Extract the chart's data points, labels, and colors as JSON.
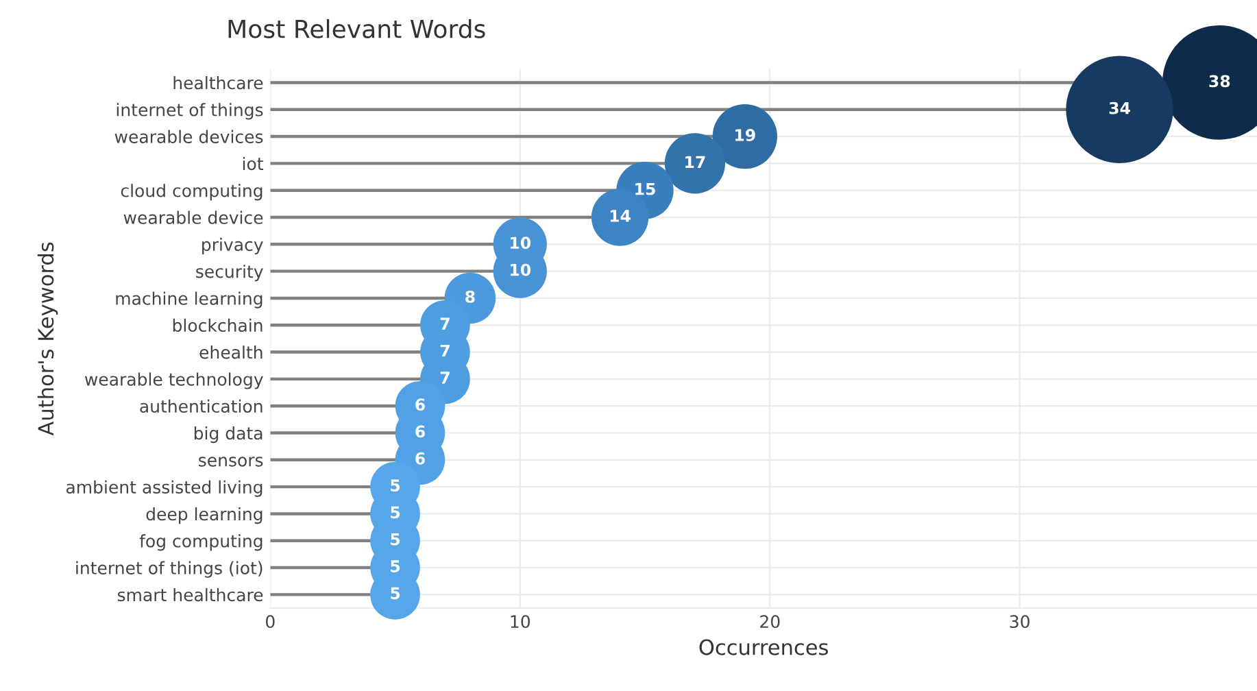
{
  "chart_data": {
    "type": "lollipop",
    "title": "Most Relevant Words",
    "xlabel": "Occurrences",
    "ylabel": "Author's Keywords",
    "categories": [
      "healthcare",
      "internet of things",
      "wearable devices",
      "iot",
      "cloud computing",
      "wearable device",
      "privacy",
      "security",
      "machine learning",
      "blockchain",
      "ehealth",
      "wearable technology",
      "authentication",
      "big data",
      "sensors",
      "ambient assisted living",
      "deep learning",
      "fog computing",
      "internet of things (iot)",
      "smart healthcare"
    ],
    "values": [
      38,
      34,
      19,
      17,
      15,
      14,
      10,
      10,
      8,
      7,
      7,
      7,
      6,
      6,
      6,
      5,
      5,
      5,
      5,
      5
    ],
    "colors": [
      "#0f2b4c",
      "#173b60",
      "#2e6ca3",
      "#3273ab",
      "#3a7fbd",
      "#3c84c4",
      "#4793d6",
      "#4793d6",
      "#4c99dd",
      "#4f9de1",
      "#4f9de1",
      "#4f9de1",
      "#52a1e6",
      "#52a1e6",
      "#52a1e6",
      "#56a6ea",
      "#56a6ea",
      "#56a6ea",
      "#56a6ea",
      "#56a6ea"
    ],
    "orientation": "horizontal",
    "sizes": [
      1,
      0.88,
      0.32,
      0.28,
      0.25,
      0.25,
      0.22,
      0.22,
      0.2,
      0.19,
      0.19,
      0.19,
      0.19,
      0.19,
      0.19,
      0.19,
      0.19,
      0.19,
      0.19,
      0.19
    ],
    "xlim": [
      0,
      39.5
    ],
    "xticks": [
      0,
      10,
      20,
      30
    ],
    "grid": true,
    "data_labels": true
  }
}
